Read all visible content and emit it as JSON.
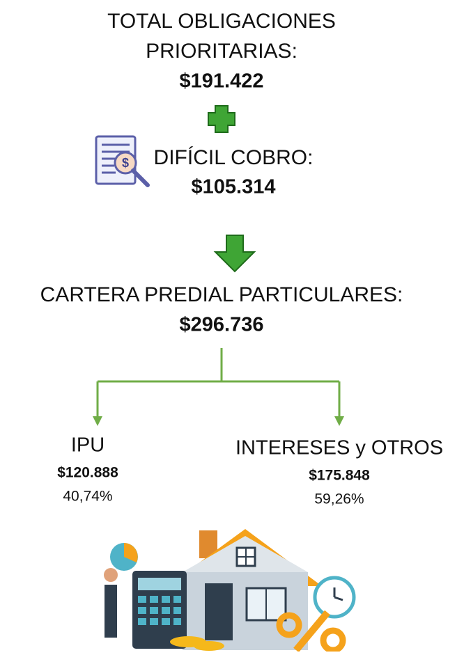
{
  "top": {
    "label_line1": "TOTAL OBLIGACIONES",
    "label_line2": "PRIORITARIAS:",
    "amount": "$191.422"
  },
  "middle": {
    "label": "DIFÍCIL COBRO:",
    "amount": "$105.314"
  },
  "total": {
    "label": "CARTERA PREDIAL PARTICULARES:",
    "amount": "$296.736"
  },
  "branches": [
    {
      "label": "IPU",
      "amount": "$120.888",
      "share": "40,74%"
    },
    {
      "label": "INTERESES y OTROS",
      "amount": "$175.848",
      "share": "59,26%"
    }
  ]
}
